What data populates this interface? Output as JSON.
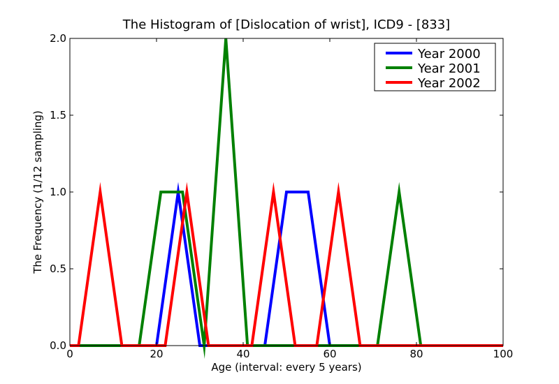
{
  "chart_data": {
    "type": "line",
    "title": "The Histogram of [Dislocation of wrist], ICD9 - [833]",
    "xlabel": "Age (interval: every 5 years)",
    "ylabel": "The Frequency (1/12 sampling)",
    "xlim": [
      0,
      100
    ],
    "ylim": [
      0,
      2.0
    ],
    "xticks": [
      0,
      20,
      40,
      60,
      80,
      100
    ],
    "yticks": [
      0.0,
      0.5,
      1.0,
      1.5,
      2.0
    ],
    "xtick_labels": [
      "0",
      "20",
      "40",
      "60",
      "80",
      "100"
    ],
    "ytick_labels": [
      "0.0",
      "0.5",
      "1.0",
      "1.5",
      "2.0"
    ],
    "grid": false,
    "legend_position": "top-right",
    "series": [
      {
        "name": "Year 2000",
        "color": "#0000ff",
        "points": [
          [
            0,
            0
          ],
          [
            20,
            0
          ],
          [
            25,
            1
          ],
          [
            30,
            0
          ],
          [
            45,
            0
          ],
          [
            50,
            1
          ],
          [
            55,
            1
          ],
          [
            60,
            0
          ],
          [
            100,
            0
          ]
        ]
      },
      {
        "name": "Year 2001",
        "color": "#008000",
        "points": [
          [
            0,
            0
          ],
          [
            16,
            0
          ],
          [
            21,
            1
          ],
          [
            26,
            1
          ],
          [
            31,
            0
          ],
          [
            36,
            2
          ],
          [
            41,
            0
          ],
          [
            71,
            0
          ],
          [
            76,
            1
          ],
          [
            81,
            0
          ],
          [
            100,
            0
          ]
        ]
      },
      {
        "name": "Year 2002",
        "color": "#ff0000",
        "points": [
          [
            0,
            0
          ],
          [
            2,
            0
          ],
          [
            7,
            1
          ],
          [
            12,
            0
          ],
          [
            22,
            0
          ],
          [
            27,
            1
          ],
          [
            32,
            0
          ],
          [
            42,
            0
          ],
          [
            47,
            1
          ],
          [
            52,
            0
          ],
          [
            57,
            0
          ],
          [
            62,
            1
          ],
          [
            67,
            0
          ],
          [
            100,
            0
          ]
        ]
      }
    ]
  }
}
